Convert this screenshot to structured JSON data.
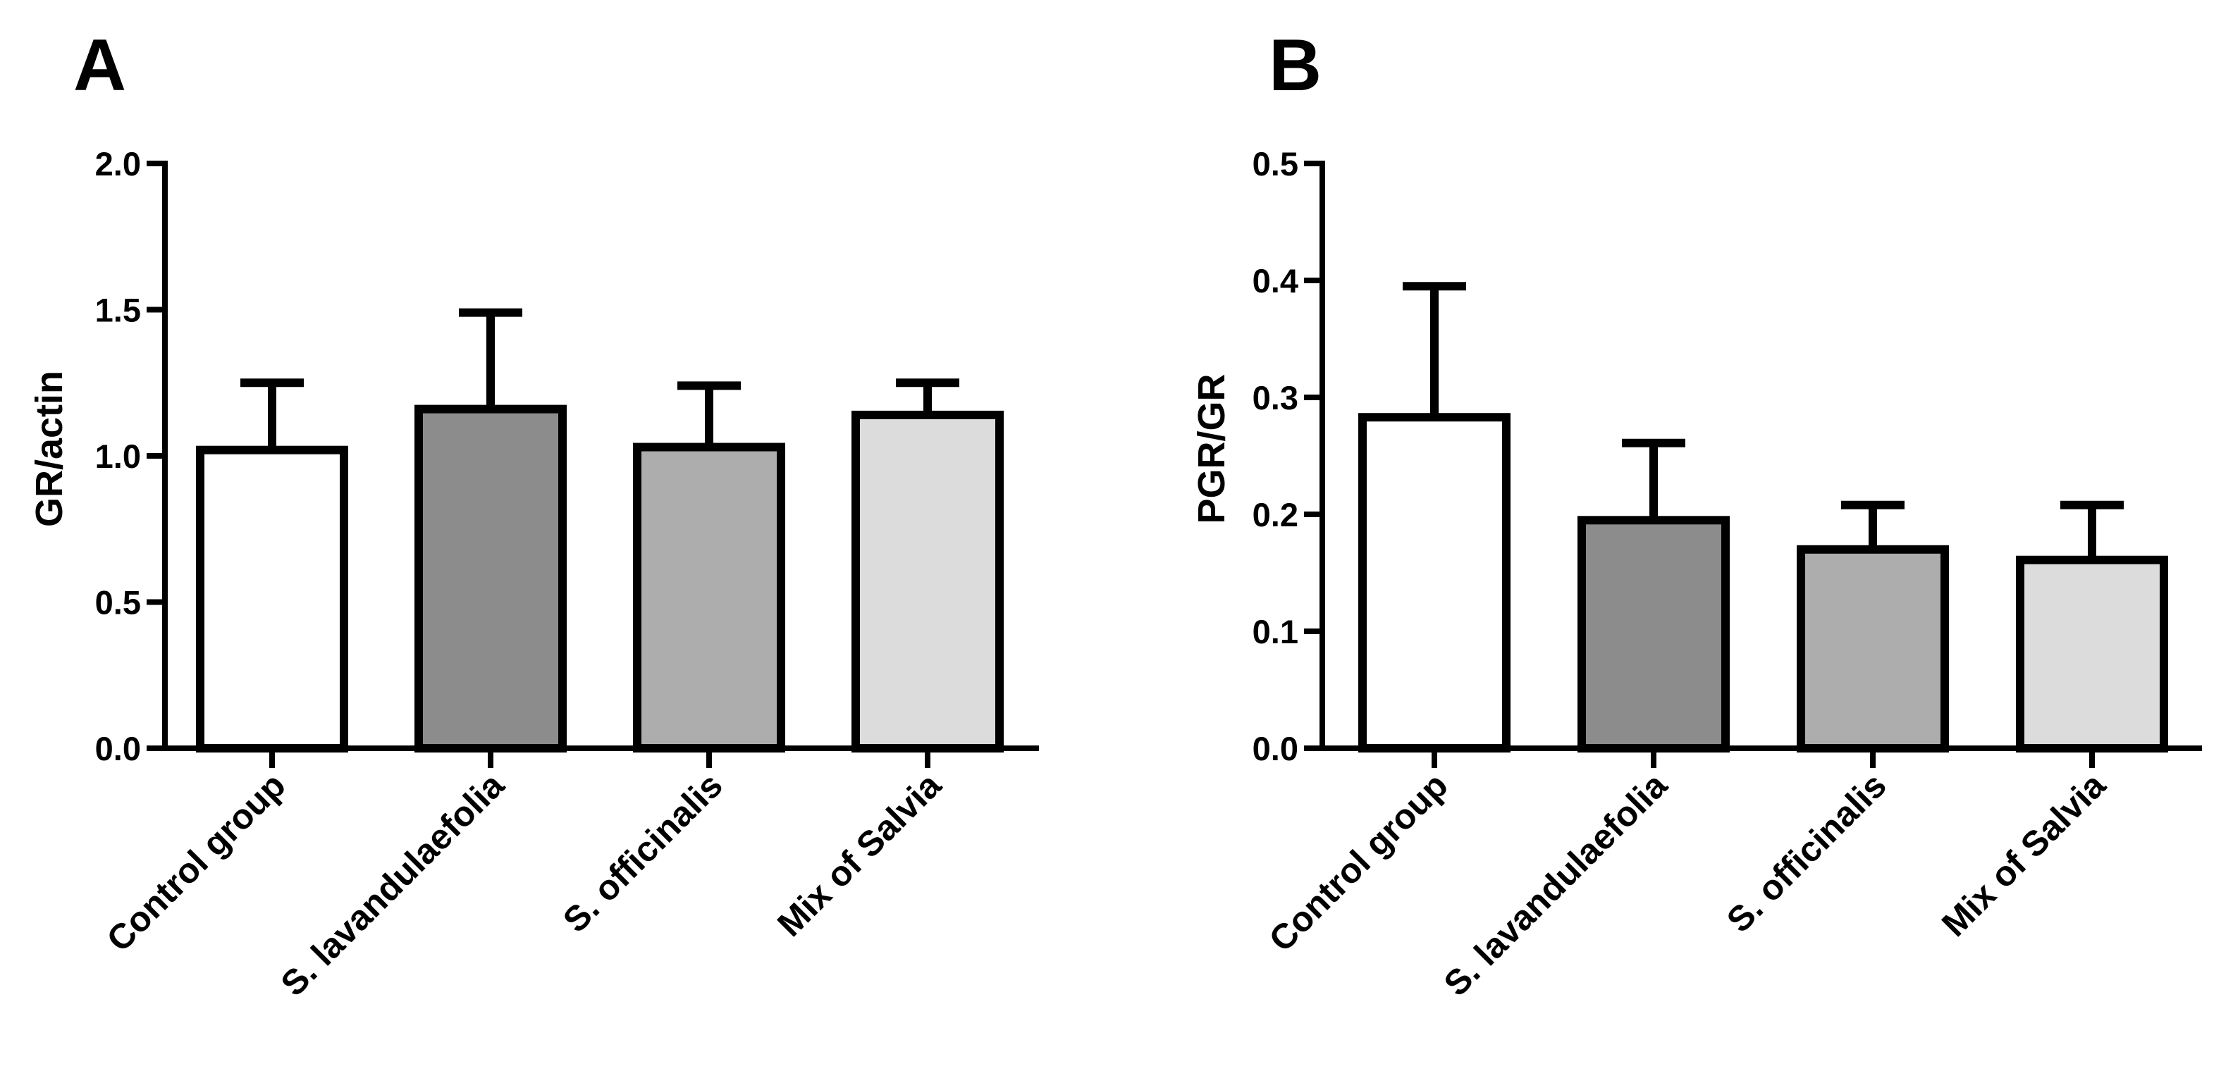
{
  "chart_data": [
    {
      "type": "bar",
      "panel_label": "A",
      "title": "",
      "xlabel": "",
      "ylabel": "GR/actin",
      "ylim": [
        0,
        2.0
      ],
      "yticks": [
        0.0,
        0.5,
        1.0,
        1.5,
        2.0
      ],
      "ytick_labels": [
        "0.0",
        "0.5",
        "1.0",
        "1.5",
        "2.0"
      ],
      "categories": [
        "Control group",
        "S. lavandulaefolia",
        "S. officinalis",
        "Mix of Salvia"
      ],
      "values": [
        1.02,
        1.16,
        1.03,
        1.14
      ],
      "errors": [
        0.23,
        0.33,
        0.21,
        0.11
      ],
      "colors": [
        "#ffffff",
        "#8c8c8c",
        "#adadad",
        "#dcdcdc"
      ],
      "grid": false
    },
    {
      "type": "bar",
      "panel_label": "B",
      "title": "",
      "xlabel": "",
      "ylabel": "PGR/GR",
      "ylim": [
        0,
        0.5
      ],
      "yticks": [
        0.0,
        0.1,
        0.2,
        0.3,
        0.4,
        0.5
      ],
      "ytick_labels": [
        "0.0",
        "0.1",
        "0.2",
        "0.3",
        "0.4",
        "0.5"
      ],
      "categories": [
        "Control group",
        "S. lavandulaefolia",
        "S. officinalis",
        "Mix of Salvia"
      ],
      "values": [
        0.283,
        0.195,
        0.17,
        0.161
      ],
      "errors": [
        0.112,
        0.066,
        0.038,
        0.047
      ],
      "colors": [
        "#ffffff",
        "#8c8c8c",
        "#adadad",
        "#dcdcdc"
      ],
      "grid": false
    }
  ]
}
